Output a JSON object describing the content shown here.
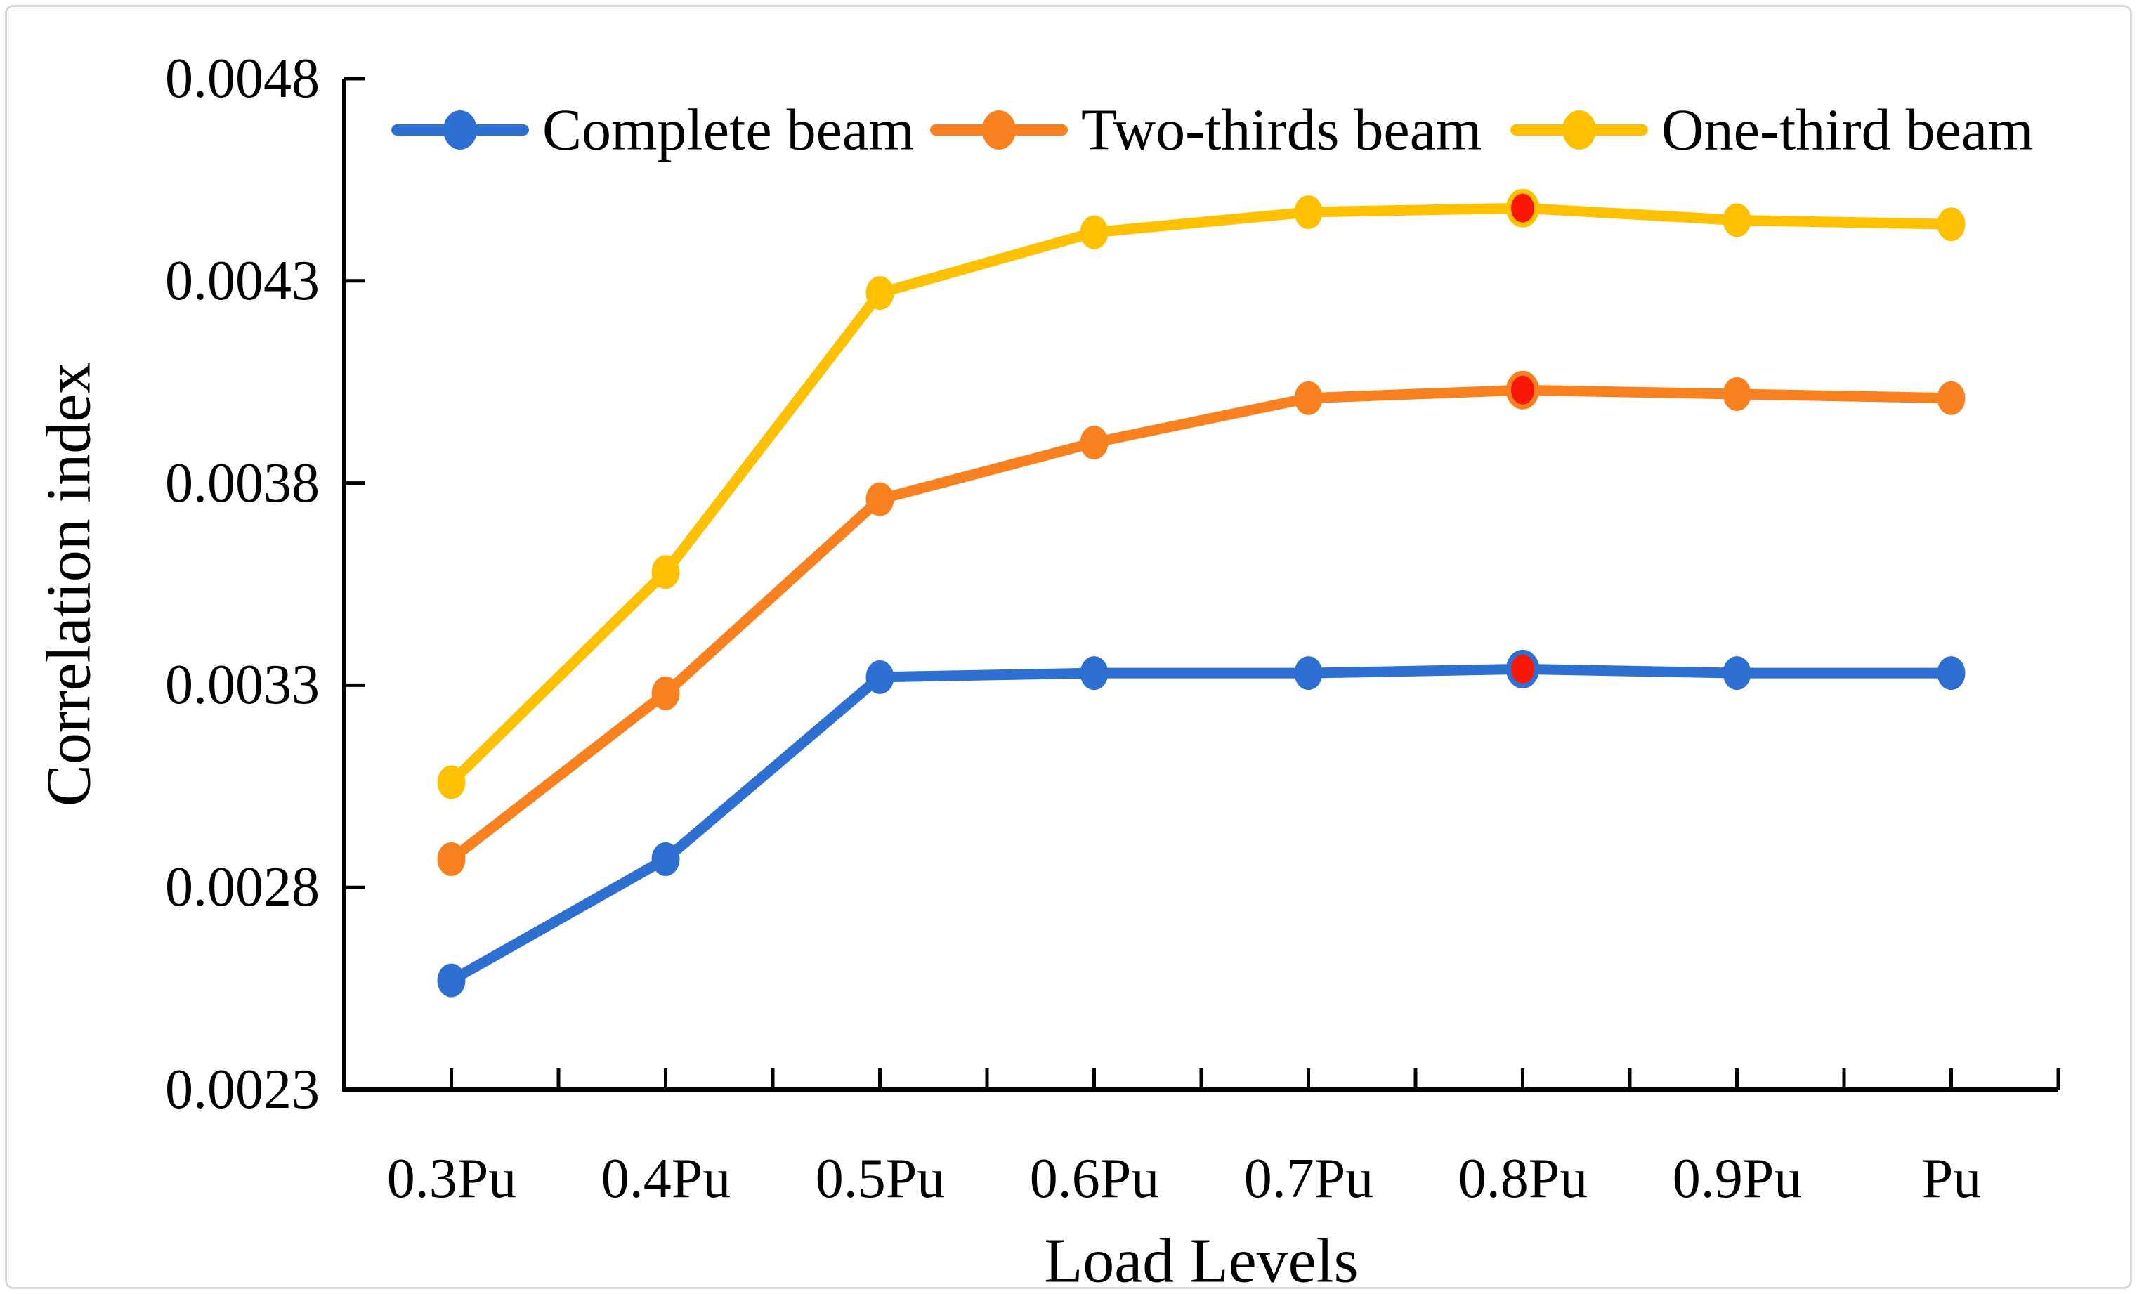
{
  "figure": {
    "background": "#ffffff",
    "border_color": "#d8d8d8"
  },
  "chart_data": {
    "type": "line",
    "title": "",
    "xlabel": "Load Levels",
    "ylabel": "Correlation index",
    "categories": [
      "0.3Pu",
      "0.4Pu",
      "0.5Pu",
      "0.6Pu",
      "0.7Pu",
      "0.8Pu",
      "0.9Pu",
      "Pu"
    ],
    "y_ticks": [
      "0.0023",
      "0.0028",
      "0.0033",
      "0.0038",
      "0.0043",
      "0.0048"
    ],
    "ylim": [
      0.0023,
      0.0048
    ],
    "grid": false,
    "legend_position": "top-center",
    "series": [
      {
        "name": "Complete beam",
        "color": "#2E6FD2",
        "values": [
          0.00257,
          0.00287,
          0.00332,
          0.00333,
          0.00333,
          0.00334,
          0.00333,
          0.00333
        ]
      },
      {
        "name": "Two-thirds beam",
        "color": "#F8801E",
        "values": [
          0.00287,
          0.00328,
          0.00376,
          0.0039,
          0.00401,
          0.00403,
          0.00402,
          0.00401
        ]
      },
      {
        "name": "One-third beam",
        "color": "#FFC000",
        "values": [
          0.00306,
          0.00358,
          0.00427,
          0.00442,
          0.00447,
          0.00448,
          0.00445,
          0.00444
        ]
      }
    ],
    "highlight": {
      "category": "0.8Pu",
      "index": 5,
      "color": "#F91808",
      "description": "red marker at 0.8Pu on each series"
    }
  }
}
